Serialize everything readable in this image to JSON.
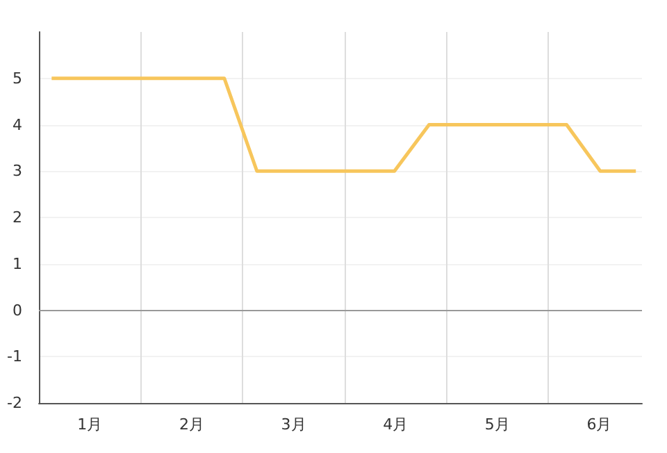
{
  "chart_data": {
    "type": "line",
    "x": [
      0.625,
      2.32,
      2.64,
      3.99,
      4.33,
      5.68,
      6.01,
      6.36
    ],
    "series": [
      {
        "color": "#f7c65c",
        "values": [
          5,
          5,
          3,
          3,
          4,
          4,
          3,
          3
        ]
      }
    ],
    "xlim": [
      0.5,
      6.42
    ],
    "xticks": [
      {
        "value": 1,
        "label": "1月"
      },
      {
        "value": 1.5,
        "label": null
      },
      {
        "value": 2,
        "label": "2月"
      },
      {
        "value": 2.5,
        "label": null
      },
      {
        "value": 3,
        "label": "3月"
      },
      {
        "value": 3.5,
        "label": null
      },
      {
        "value": 4,
        "label": "4月"
      },
      {
        "value": 4.5,
        "label": null
      },
      {
        "value": 5,
        "label": "5月"
      },
      {
        "value": 5.5,
        "label": null
      },
      {
        "value": 6,
        "label": "6月"
      }
    ],
    "ylim": [
      -2,
      6
    ],
    "yticks": [
      -2,
      -1,
      0,
      1,
      2,
      3,
      4,
      5
    ],
    "ref_lines": [
      {
        "axis": "y",
        "value": 0,
        "color": "#999999"
      }
    ],
    "grid": true,
    "marker": "none",
    "line_style": "solid"
  }
}
